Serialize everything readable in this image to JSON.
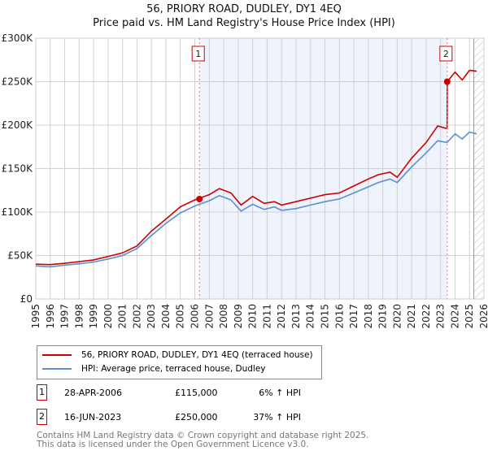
{
  "chart_data": {
    "type": "line",
    "title": "56, PRIORY ROAD, DUDLEY, DY1 4EQ",
    "subtitle": "Price paid vs. HM Land Registry's House Price Index (HPI)",
    "xlim": [
      1995,
      2026
    ],
    "ylim": [
      0,
      300000
    ],
    "x_ticks": [
      "1995",
      "1996",
      "1997",
      "1998",
      "1999",
      "2000",
      "2001",
      "2002",
      "2003",
      "2004",
      "2005",
      "2006",
      "2007",
      "2008",
      "2009",
      "2010",
      "2011",
      "2012",
      "2013",
      "2014",
      "2015",
      "2016",
      "2017",
      "2018",
      "2019",
      "2020",
      "2021",
      "2022",
      "2023",
      "2024",
      "2025",
      "2026"
    ],
    "y_ticks": [
      {
        "v": 0,
        "l": "£0"
      },
      {
        "v": 50000,
        "l": "£50K"
      },
      {
        "v": 100000,
        "l": "£100K"
      },
      {
        "v": 150000,
        "l": "£150K"
      },
      {
        "v": 200000,
        "l": "£200K"
      },
      {
        "v": 250000,
        "l": "£250K"
      },
      {
        "v": 300000,
        "l": "£300K"
      }
    ],
    "x": [
      1995,
      1996,
      1997,
      1998,
      1999,
      2000,
      2001,
      2002,
      2003,
      2004,
      2005,
      2006,
      2007,
      2007.7,
      2008.5,
      2009.2,
      2010,
      2010.8,
      2011.5,
      2012,
      2013,
      2014,
      2015,
      2016,
      2017,
      2018,
      2018.7,
      2019.5,
      2020,
      2021,
      2022,
      2022.8,
      2023.45,
      2024,
      2024.5,
      2025,
      2025.5
    ],
    "series": [
      {
        "name": "56, PRIORY ROAD, DUDLEY, DY1 4EQ (terraced house)",
        "color": "#cc0000",
        "values": [
          40000,
          39500,
          41000,
          43000,
          45000,
          49000,
          53000,
          61000,
          78000,
          92000,
          106000,
          114000,
          120000,
          127000,
          122000,
          108000,
          118000,
          110000,
          112000,
          108000,
          112000,
          116000,
          120000,
          122000,
          130000,
          138000,
          143000,
          146000,
          140000,
          162000,
          180000,
          199000,
          196000,
          261000,
          252000,
          263000,
          262000
        ]
      },
      {
        "name": "HPI: Average price, terraced house, Dudley",
        "color": "#5b8fd1",
        "values": [
          38000,
          37000,
          39000,
          40500,
          42500,
          46000,
          50000,
          58000,
          73000,
          87000,
          99000,
          107000,
          113000,
          119000,
          114000,
          101000,
          109000,
          103000,
          106000,
          102000,
          104000,
          108000,
          112000,
          115000,
          122000,
          129000,
          134000,
          138000,
          134000,
          152000,
          168000,
          182000,
          180000,
          190000,
          184000,
          192000,
          190000
        ]
      }
    ],
    "sales": [
      {
        "n": "1",
        "x": 2006.32,
        "date": "28-APR-2006",
        "price": 115000,
        "price_label": "£115,000",
        "hpi": "6% ↑ HPI"
      },
      {
        "n": "2",
        "x": 2023.46,
        "date": "16-JUN-2023",
        "price": 250000,
        "price_label": "£250,000",
        "hpi": "37% ↑ HPI"
      }
    ],
    "forecast_start": 2025.3,
    "colors": {
      "shade": "#eef3fc",
      "hatch": "#bbbbbb"
    }
  },
  "footer": [
    "Contains HM Land Registry data © Crown copyright and database right 2025.",
    "This data is licensed under the Open Government Licence v3.0."
  ]
}
